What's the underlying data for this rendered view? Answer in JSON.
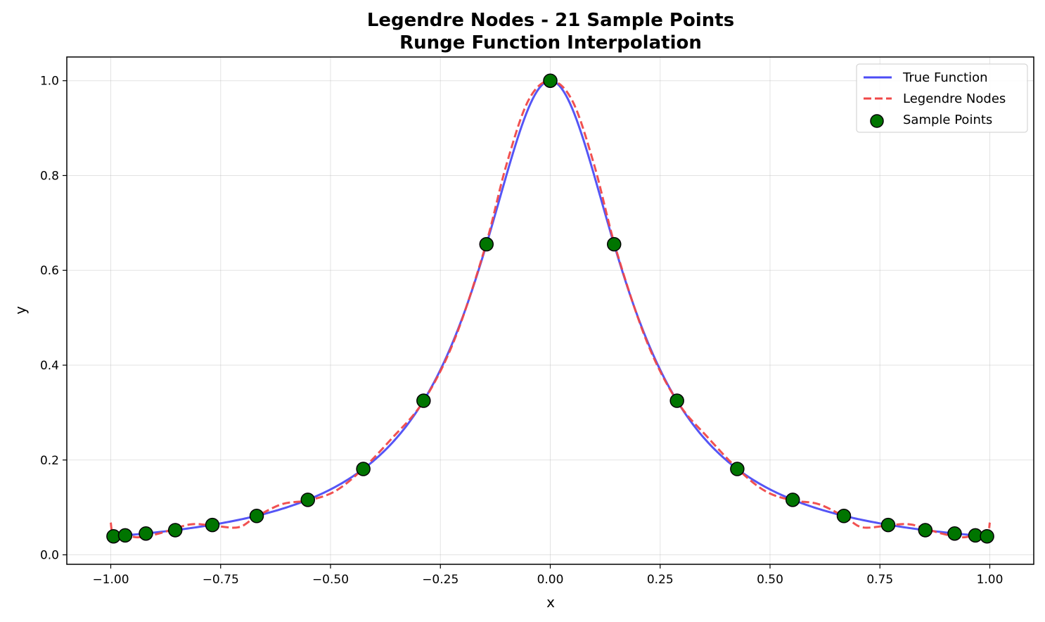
{
  "chart_data": {
    "type": "line",
    "title": "Legendre Nodes - 21 Sample Points",
    "subtitle": "Runge Function Interpolation",
    "xlabel": "x",
    "ylabel": "y",
    "xlim": [
      -1.1,
      1.1
    ],
    "ylim": [
      -0.02,
      1.05
    ],
    "xticks": [
      -1.0,
      -0.75,
      -0.5,
      -0.25,
      0.0,
      0.25,
      0.5,
      0.75,
      1.0
    ],
    "xtick_labels": [
      "−1.00",
      "−0.75",
      "−0.50",
      "−0.25",
      "0.00",
      "0.25",
      "0.50",
      "0.75",
      "1.00"
    ],
    "yticks": [
      0.0,
      0.2,
      0.4,
      0.6,
      0.8,
      1.0
    ],
    "ytick_labels": [
      "0.0",
      "0.2",
      "0.4",
      "0.6",
      "0.8",
      "1.0"
    ],
    "grid": true,
    "legend_position": "top-right",
    "legend": [
      "True Function",
      "Legendre Nodes",
      "Sample Points"
    ],
    "colors": {
      "true_function": "#4c4cf5",
      "interpolation": "#f04848",
      "points_fill": "#007500",
      "points_edge": "#000000"
    },
    "function": "1/(1+25x^2)",
    "sample_points": {
      "name": "Sample Points",
      "x": [
        -0.9937,
        -0.9672,
        -0.92,
        -0.8533,
        -0.7688,
        -0.668,
        -0.5516,
        -0.4254,
        -0.2883,
        -0.1452,
        0.0,
        0.1452,
        0.2883,
        0.4254,
        0.5516,
        0.668,
        0.7688,
        0.8533,
        0.92,
        0.9672,
        0.9937
      ],
      "y": [
        0.039,
        0.041,
        0.045,
        0.052,
        0.063,
        0.082,
        0.116,
        0.181,
        0.325,
        0.655,
        1.0,
        0.655,
        0.325,
        0.181,
        0.116,
        0.082,
        0.063,
        0.052,
        0.045,
        0.041,
        0.039
      ]
    },
    "interpolation_curve": {
      "name": "Legendre Nodes",
      "x": [
        -1.0,
        -0.995,
        -0.98,
        -0.94,
        -0.89,
        -0.82,
        -0.77,
        -0.71,
        -0.67,
        -0.61,
        -0.55,
        -0.49,
        -0.43,
        -0.36,
        -0.29,
        -0.22,
        -0.15,
        -0.1,
        -0.05,
        0.0,
        0.05,
        0.1,
        0.15,
        0.22,
        0.29,
        0.36,
        0.43,
        0.49,
        0.55,
        0.61,
        0.67,
        0.71,
        0.77,
        0.82,
        0.89,
        0.94,
        0.98,
        0.995,
        1.0
      ],
      "y": [
        0.068,
        0.042,
        0.046,
        0.037,
        0.045,
        0.064,
        0.062,
        0.058,
        0.08,
        0.107,
        0.115,
        0.134,
        0.178,
        0.246,
        0.322,
        0.449,
        0.643,
        0.822,
        0.958,
        1.0,
        0.958,
        0.822,
        0.643,
        0.449,
        0.322,
        0.246,
        0.178,
        0.134,
        0.115,
        0.107,
        0.08,
        0.058,
        0.062,
        0.064,
        0.045,
        0.037,
        0.046,
        0.042,
        0.068
      ]
    }
  }
}
